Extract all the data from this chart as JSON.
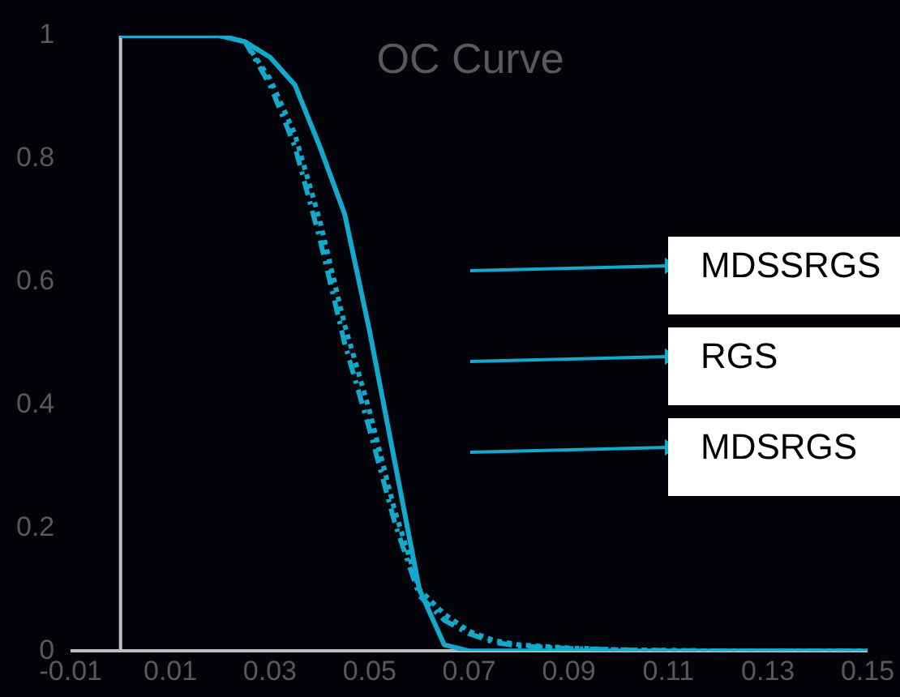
{
  "chart_data": {
    "type": "line",
    "title": "OC Curve",
    "x": [
      0,
      0.01,
      0.02,
      0.025,
      0.03,
      0.035,
      0.04,
      0.045,
      0.05,
      0.055,
      0.06,
      0.065,
      0.07,
      0.075,
      0.08,
      0.09,
      0.1,
      0.12,
      0.15
    ],
    "series": [
      {
        "name": "MDSSRGS",
        "color": "#12a9cc",
        "line_style": "dotted",
        "values": [
          1,
          1,
          1,
          0.99,
          0.93,
          0.84,
          0.7,
          0.53,
          0.39,
          0.23,
          0.1,
          0.06,
          0.032,
          0.017,
          0.01,
          0.005,
          0.002,
          0,
          0
        ]
      },
      {
        "name": "RGS",
        "color": "#12a9cc",
        "line_style": "solid",
        "values": [
          1,
          1,
          1,
          0.99,
          0.965,
          0.92,
          0.82,
          0.71,
          0.52,
          0.31,
          0.1,
          0.01,
          0,
          0,
          0,
          0,
          0,
          0,
          0
        ]
      },
      {
        "name": "MDSRGS",
        "color": "#12a9cc",
        "line_style": "dashed",
        "values": [
          1,
          1,
          1,
          0.99,
          0.92,
          0.82,
          0.67,
          0.5,
          0.36,
          0.21,
          0.09,
          0.05,
          0.028,
          0.014,
          0.008,
          0.004,
          0.002,
          0,
          0
        ]
      }
    ],
    "xlim": [
      -0.01,
      0.15
    ],
    "xticks": [
      -0.01,
      0.01,
      0.03,
      0.05,
      0.07,
      0.09,
      0.11,
      0.13,
      0.15
    ],
    "ylim": [
      0,
      1
    ],
    "yticks": [
      0,
      0.2,
      0.4,
      0.6,
      0.8,
      1
    ],
    "grid": false,
    "legend": "right",
    "marker": "none"
  }
}
